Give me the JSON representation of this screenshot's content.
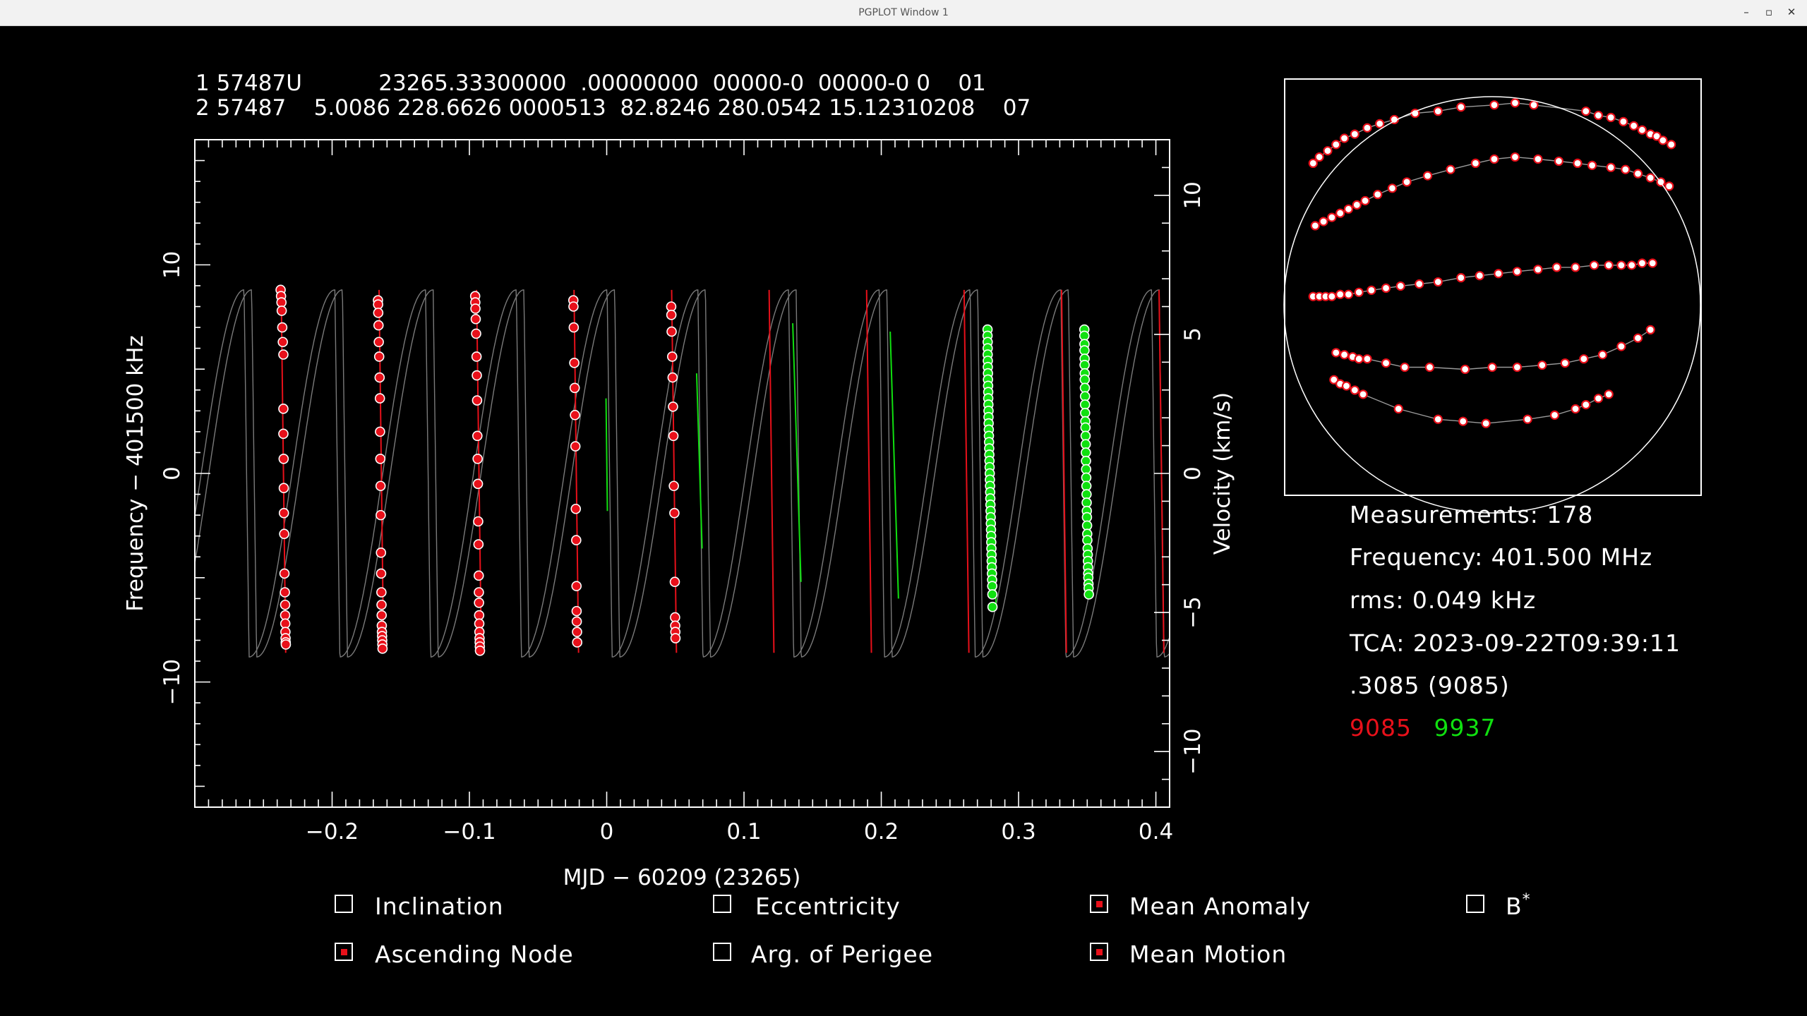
{
  "window": {
    "title": "PGPLOT Window 1"
  },
  "tle": {
    "line1": "1 57487U           23265.33300000  .00000000  00000-0  00000-0 0    01",
    "line2": "2 57487    5.0086 228.6626 0000513  82.8246 280.0542 15.12310208    07"
  },
  "info": {
    "measurements": "Measurements: 178",
    "frequency": "Frequency: 401.500 MHz",
    "rms": "rms: 0.049 kHz",
    "tca": "TCA: 2023-09-22T09:39:11",
    "site": ".3085 (9085)",
    "site_red": "9085",
    "site_green": "9937"
  },
  "checkboxes": [
    {
      "label": "Inclination",
      "checked": false
    },
    {
      "label": "Eccentricity",
      "checked": false
    },
    {
      "label": "Mean Anomaly",
      "checked": true
    },
    {
      "label": "B",
      "sup": "*",
      "checked": false
    },
    {
      "label": "Ascending Node",
      "checked": true
    },
    {
      "label": "Arg. of Perigee",
      "checked": false
    },
    {
      "label": "Mean Motion",
      "checked": true
    }
  ],
  "colors": {
    "site_red": "#e8101a",
    "site_green": "#10e010",
    "curve_grey": "#7a7a7a",
    "axes": "#ffffff"
  },
  "chart_data": [
    {
      "type": "scatter",
      "title": "",
      "xlabel": "MJD − 60209 (23265)",
      "ylabel": "Frequency − 401500 kHz",
      "y2label": "Velocity (km/s)",
      "xlim": [
        -0.3,
        0.41
      ],
      "ylim": [
        -16,
        16
      ],
      "y2lim": [
        -12.0,
        12.0
      ],
      "xticks": [
        -0.2,
        -0.1,
        0,
        0.1,
        0.2,
        0.3,
        0.4
      ],
      "xtick_labels": [
        "−0.2",
        "−0.1",
        "0",
        "0.1",
        "0.2",
        "0.3",
        "0.4"
      ],
      "yticks": [
        -10,
        0,
        10
      ],
      "ytick_labels": [
        "−10",
        "0",
        "10"
      ],
      "y2ticks": [
        -10,
        -5,
        0,
        5,
        10
      ],
      "y2tick_labels": [
        "−10",
        "−5",
        "0",
        "5",
        "10"
      ],
      "model": {
        "period_days": 0.0661,
        "amplitude_khz": 8.8,
        "second_site_offset_days": 0.0055
      },
      "fit_segments": [
        {
          "site": "9085",
          "x": [
            -0.2371,
            -0.2338
          ],
          "y": [
            8.8,
            -8.6
          ]
        },
        {
          "site": "9085",
          "x": [
            -0.1658,
            -0.1625
          ],
          "y": [
            8.8,
            -8.6
          ]
        },
        {
          "site": "9085",
          "x": [
            -0.0948,
            -0.0913
          ],
          "y": [
            8.8,
            -8.6
          ]
        },
        {
          "site": "9085",
          "x": [
            -0.0238,
            -0.0205
          ],
          "y": [
            8.8,
            -8.6
          ]
        },
        {
          "site": "9085",
          "x": [
            0.0473,
            0.0508
          ],
          "y": [
            8.8,
            -8.6
          ]
        },
        {
          "site": "9085",
          "x": [
            0.1183,
            0.1218
          ],
          "y": [
            8.8,
            -8.6
          ]
        },
        {
          "site": "9085",
          "x": [
            0.1893,
            0.1928
          ],
          "y": [
            8.8,
            -8.6
          ]
        },
        {
          "site": "9085",
          "x": [
            0.2603,
            0.2638
          ],
          "y": [
            8.8,
            -8.6
          ]
        },
        {
          "site": "9085",
          "x": [
            0.3313,
            0.3348
          ],
          "y": [
            8.8,
            -8.6
          ]
        },
        {
          "site": "9085",
          "x": [
            0.4023,
            0.4058
          ],
          "y": [
            8.8,
            -8.6
          ]
        },
        {
          "site": "9937",
          "x": [
            -0.0005,
            0.0005
          ],
          "y": [
            3.6,
            -1.8
          ]
        },
        {
          "site": "9937",
          "x": [
            0.0655,
            0.0695
          ],
          "y": [
            4.8,
            -3.6
          ]
        },
        {
          "site": "9937",
          "x": [
            0.1355,
            0.1415
          ],
          "y": [
            7.2,
            -5.2
          ]
        },
        {
          "site": "9937",
          "x": [
            0.2065,
            0.2125
          ],
          "y": [
            6.8,
            -6.0
          ]
        },
        {
          "site": "9937",
          "x": [
            0.2766,
            0.2836
          ],
          "y": [
            6.9,
            -6.4
          ]
        },
        {
          "site": "9937",
          "x": [
            0.3476,
            0.3536
          ],
          "y": [
            6.8,
            -5.8
          ]
        }
      ],
      "passes": [
        {
          "site": "9085",
          "x": [
            -0.2375,
            -0.2372,
            -0.2369,
            -0.2367,
            -0.2363,
            -0.2359,
            -0.2355,
            -0.2355,
            -0.2355,
            -0.2353,
            -0.2352,
            -0.2351,
            -0.2349,
            -0.2347,
            -0.2344,
            -0.2342,
            -0.2342,
            -0.2341,
            -0.234,
            -0.2339,
            -0.2338,
            -0.2337
          ],
          "y": [
            8.8,
            8.5,
            8.2,
            7.8,
            7.0,
            6.3,
            5.7,
            3.1,
            1.9,
            0.7,
            -0.7,
            -1.9,
            -2.9,
            -4.8,
            -5.7,
            -6.3,
            -6.8,
            -7.2,
            -7.6,
            -7.9,
            -8.1,
            -8.2
          ]
        },
        {
          "site": "9085",
          "x": [
            -0.1666,
            -0.1665,
            -0.1664,
            -0.1662,
            -0.166,
            -0.1657,
            -0.1654,
            -0.1652,
            -0.1651,
            -0.1649,
            -0.1647,
            -0.1646,
            -0.1644,
            -0.1643,
            -0.1641,
            -0.164,
            -0.1639,
            -0.1638,
            -0.1637,
            -0.1636,
            -0.1635,
            -0.1634,
            -0.1633
          ],
          "y": [
            8.3,
            8.1,
            7.7,
            7.1,
            6.3,
            5.6,
            4.6,
            3.6,
            2.0,
            0.7,
            -0.6,
            -2.0,
            -3.8,
            -4.8,
            -5.7,
            -6.3,
            -6.8,
            -7.3,
            -7.6,
            -7.8,
            -8.0,
            -8.2,
            -8.4
          ]
        },
        {
          "site": "9085",
          "x": [
            -0.0958,
            -0.0957,
            -0.0956,
            -0.0954,
            -0.0951,
            -0.0948,
            -0.0946,
            -0.0944,
            -0.0942,
            -0.094,
            -0.0938,
            -0.0936,
            -0.0934,
            -0.0932,
            -0.0931,
            -0.093,
            -0.0929,
            -0.0928,
            -0.0927,
            -0.0926,
            -0.0925,
            -0.0924,
            -0.0923
          ],
          "y": [
            8.5,
            8.2,
            7.9,
            7.4,
            6.7,
            5.6,
            4.7,
            3.5,
            1.8,
            0.7,
            -0.5,
            -2.3,
            -3.4,
            -4.9,
            -5.7,
            -6.2,
            -6.8,
            -7.2,
            -7.6,
            -7.9,
            -8.1,
            -8.3,
            -8.5
          ]
        },
        {
          "site": "9085",
          "x": [
            -0.0243,
            -0.0242,
            -0.024,
            -0.0236,
            -0.0233,
            -0.0231,
            -0.0228,
            -0.0225,
            -0.0222,
            -0.022,
            -0.0219,
            -0.0218,
            -0.0216,
            -0.0215
          ],
          "y": [
            8.3,
            8.0,
            7.0,
            5.3,
            4.1,
            2.8,
            1.3,
            -1.7,
            -3.2,
            -5.4,
            -6.6,
            -7.1,
            -7.6,
            -8.1
          ]
        },
        {
          "site": "9085",
          "x": [
            0.047,
            0.0471,
            0.0473,
            0.0477,
            0.048,
            0.0483,
            0.0486,
            0.0489,
            0.0493,
            0.0496,
            0.0498,
            0.0499,
            0.05,
            0.0501
          ],
          "y": [
            8.0,
            7.6,
            6.8,
            5.6,
            4.6,
            3.2,
            1.8,
            -0.6,
            -1.9,
            -5.2,
            -6.9,
            -7.3,
            -7.6,
            -7.9
          ]
        },
        {
          "site": "9937",
          "x": [
            0.2774,
            0.2774,
            0.2775,
            0.2775,
            0.2775,
            0.2776,
            0.2776,
            0.2777,
            0.2777,
            0.2778,
            0.2779,
            0.2779,
            0.278,
            0.2781,
            0.2781,
            0.2782,
            0.2783,
            0.2784,
            0.2785,
            0.2786,
            0.2787,
            0.2788,
            0.2789,
            0.279,
            0.2791,
            0.2792,
            0.2793,
            0.2794,
            0.2795,
            0.2796,
            0.2797,
            0.2798,
            0.2799,
            0.28,
            0.2801,
            0.2802,
            0.2803,
            0.2804,
            0.2805,
            0.2806,
            0.2807,
            0.2808,
            0.2809,
            0.281
          ],
          "y": [
            6.9,
            6.6,
            6.3,
            6.0,
            5.7,
            5.4,
            5.1,
            4.8,
            4.5,
            4.2,
            3.9,
            3.6,
            3.3,
            3.0,
            2.7,
            2.4,
            2.1,
            1.8,
            1.5,
            1.2,
            0.9,
            0.6,
            0.3,
            0.0,
            -0.3,
            -0.6,
            -0.9,
            -1.2,
            -1.5,
            -1.8,
            -2.1,
            -2.4,
            -2.7,
            -3.0,
            -3.3,
            -3.6,
            -3.9,
            -4.2,
            -4.5,
            -4.8,
            -5.1,
            -5.4,
            -5.8,
            -6.4
          ]
        },
        {
          "site": "9937",
          "x": [
            0.3479,
            0.3479,
            0.348,
            0.348,
            0.3481,
            0.3481,
            0.3482,
            0.3482,
            0.3483,
            0.3484,
            0.3484,
            0.3485,
            0.3486,
            0.3487,
            0.3488,
            0.3489,
            0.349,
            0.3491,
            0.3492,
            0.3493,
            0.3494,
            0.3495,
            0.3496,
            0.3497,
            0.3498,
            0.3499,
            0.35,
            0.3501,
            0.3503,
            0.3504,
            0.3505,
            0.3506,
            0.3507,
            0.3508,
            0.3509,
            0.351,
            0.3512
          ],
          "y": [
            6.9,
            6.6,
            6.2,
            5.9,
            5.5,
            5.2,
            4.8,
            4.5,
            4.1,
            3.7,
            3.3,
            2.9,
            2.5,
            2.2,
            1.8,
            1.4,
            1.0,
            0.6,
            0.2,
            -0.2,
            -0.6,
            -1.0,
            -1.4,
            -1.8,
            -2.1,
            -2.5,
            -2.9,
            -3.2,
            -3.6,
            -3.9,
            -4.2,
            -4.5,
            -4.8,
            -5.0,
            -5.3,
            -5.5,
            -5.8
          ]
        }
      ]
    },
    {
      "type": "scatter",
      "title": "",
      "projection": "sky",
      "tracks": [
        {
          "x": [
            -0.86,
            -0.83,
            -0.79,
            -0.75,
            -0.71,
            -0.66,
            -0.6,
            -0.54,
            -0.47,
            -0.37,
            -0.26,
            -0.15,
            0.01,
            0.11,
            0.2,
            0.45,
            0.51,
            0.57,
            0.63,
            0.68,
            0.72,
            0.76,
            0.79,
            0.82,
            0.86
          ],
          "y": [
            0.68,
            0.71,
            0.74,
            0.77,
            0.8,
            0.82,
            0.85,
            0.87,
            0.89,
            0.92,
            0.93,
            0.95,
            0.96,
            0.97,
            0.96,
            0.93,
            0.91,
            0.9,
            0.88,
            0.86,
            0.84,
            0.82,
            0.81,
            0.79,
            0.77
          ]
        },
        {
          "x": [
            -0.85,
            -0.81,
            -0.77,
            -0.73,
            -0.69,
            -0.65,
            -0.61,
            -0.55,
            -0.48,
            -0.41,
            -0.31,
            -0.2,
            -0.08,
            0.01,
            0.11,
            0.22,
            0.32,
            0.41,
            0.48,
            0.57,
            0.64,
            0.7,
            0.76,
            0.81,
            0.85
          ],
          "y": [
            0.38,
            0.4,
            0.42,
            0.44,
            0.46,
            0.48,
            0.5,
            0.53,
            0.56,
            0.59,
            0.62,
            0.65,
            0.68,
            0.7,
            0.71,
            0.7,
            0.69,
            0.68,
            0.67,
            0.66,
            0.65,
            0.63,
            0.61,
            0.59,
            0.57
          ]
        },
        {
          "x": [
            -0.86,
            -0.83,
            -0.8,
            -0.77,
            -0.73,
            -0.69,
            -0.64,
            -0.58,
            -0.51,
            -0.44,
            -0.35,
            -0.26,
            -0.15,
            -0.06,
            0.03,
            0.12,
            0.22,
            0.31,
            0.4,
            0.49,
            0.56,
            0.62,
            0.67,
            0.72,
            0.77
          ],
          "y": [
            0.04,
            0.04,
            0.04,
            0.04,
            0.05,
            0.05,
            0.06,
            0.07,
            0.08,
            0.09,
            0.1,
            0.11,
            0.13,
            0.14,
            0.15,
            0.16,
            0.17,
            0.18,
            0.18,
            0.19,
            0.19,
            0.19,
            0.19,
            0.2,
            0.2
          ]
        },
        {
          "x": [
            -0.75,
            -0.71,
            -0.67,
            -0.64,
            -0.6,
            -0.51,
            -0.42,
            -0.3,
            -0.13,
            0.0,
            0.12,
            0.24,
            0.35,
            0.44,
            0.53,
            0.62,
            0.7,
            0.76
          ],
          "y": [
            -0.23,
            -0.24,
            -0.25,
            -0.26,
            -0.26,
            -0.28,
            -0.3,
            -0.3,
            -0.31,
            -0.3,
            -0.3,
            -0.29,
            -0.28,
            -0.26,
            -0.24,
            -0.2,
            -0.16,
            -0.12
          ]
        },
        {
          "x": [
            -0.76,
            -0.73,
            -0.7,
            -0.66,
            -0.62,
            -0.45,
            -0.26,
            -0.14,
            -0.03,
            0.17,
            0.3,
            0.4,
            0.45,
            0.51,
            0.56
          ],
          "y": [
            -0.36,
            -0.38,
            -0.39,
            -0.41,
            -0.43,
            -0.5,
            -0.55,
            -0.56,
            -0.57,
            -0.55,
            -0.53,
            -0.5,
            -0.48,
            -0.45,
            -0.43
          ]
        }
      ]
    }
  ]
}
